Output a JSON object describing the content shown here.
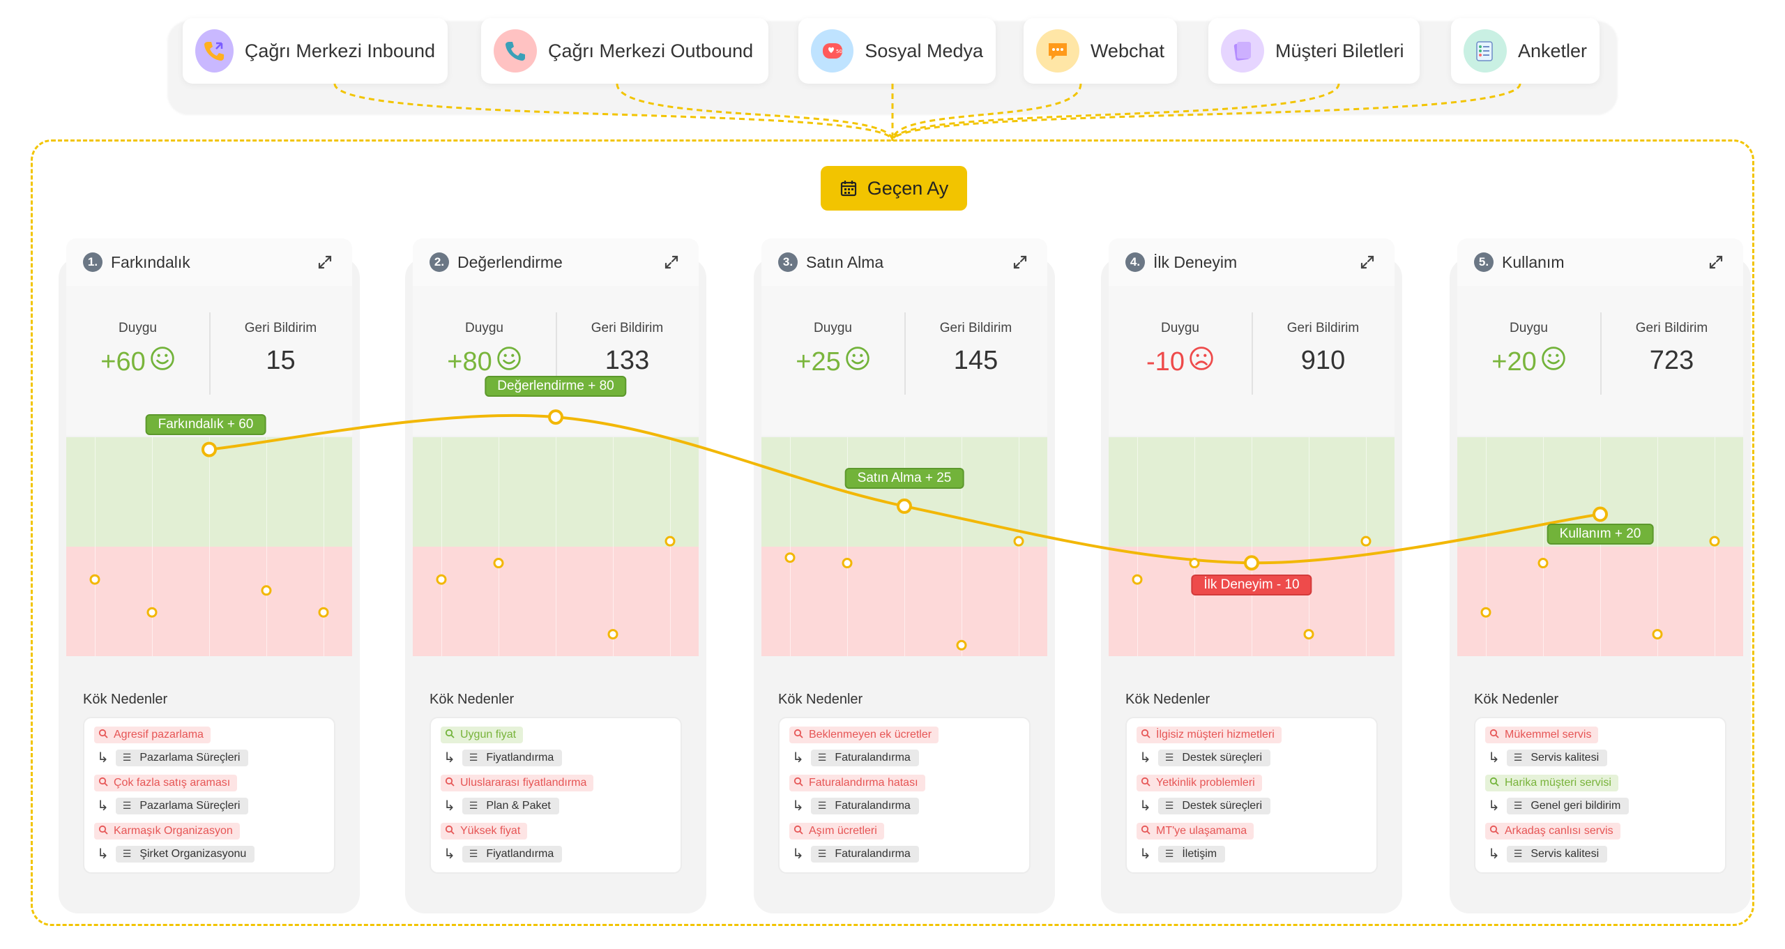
{
  "sources": [
    {
      "label": "Çağrı Merkezi Inbound",
      "icon": "phone-inbound-icon",
      "color": "#c9b8ff"
    },
    {
      "label": "Çağrı Merkezi Outbound",
      "icon": "phone-outbound-icon",
      "color": "#ffc2c2"
    },
    {
      "label": "Sosyal Medya",
      "icon": "social-media-icon",
      "color": "#bfe3ff"
    },
    {
      "label": "Webchat",
      "icon": "webchat-icon",
      "color": "#ffe6a6"
    },
    {
      "label": "Müşteri Biletleri",
      "icon": "ticket-icon",
      "color": "#e6d5ff"
    },
    {
      "label": "Anketler",
      "icon": "survey-icon",
      "color": "#c9f0e3"
    }
  ],
  "period": {
    "label": "Geçen Ay",
    "icon": "calendar-icon"
  },
  "metric_labels": {
    "sentiment": "Duygu",
    "feedback": "Geri Bildirim"
  },
  "root_causes_title": "Kök Nedenler",
  "colors": {
    "accent": "#f2c400",
    "positive": "#72b33a",
    "negative": "#ee4b4b"
  },
  "stages": [
    {
      "number": "1.",
      "title": "Farkındalık",
      "sentiment": "+60",
      "sentiment_value": 60,
      "mood": "happy",
      "feedback": "15",
      "chart_label": "Farkındalık + 60",
      "points": [
        [
          0.1,
          -0.3
        ],
        [
          0.3,
          -0.6
        ],
        [
          0.7,
          -0.4
        ],
        [
          0.9,
          -0.6
        ]
      ],
      "causes": [
        {
          "text": "Agresif pazarlama",
          "type": "neg",
          "category": "Pazarlama Süreçleri"
        },
        {
          "text": "Çok fazla satış araması",
          "type": "neg",
          "category": "Pazarlama Süreçleri"
        },
        {
          "text": "Karmaşık Organizasyon",
          "type": "neg",
          "category": "Şirket Organizasyonu"
        }
      ]
    },
    {
      "number": "2.",
      "title": "Değerlendirme",
      "sentiment": "+80",
      "sentiment_value": 80,
      "mood": "happy",
      "feedback": "133",
      "chart_label": "Değerlendirme + 80",
      "points": [
        [
          0.1,
          -0.3
        ],
        [
          0.3,
          -0.15
        ],
        [
          0.7,
          -0.8
        ],
        [
          0.9,
          0.05
        ]
      ],
      "causes": [
        {
          "text": "Uygun fiyat",
          "type": "pos",
          "category": "Fiyatlandırma"
        },
        {
          "text": "Uluslararası fiyatlandırma",
          "type": "neg",
          "category": "Plan & Paket"
        },
        {
          "text": "Yüksek fiyat",
          "type": "neg",
          "category": "Fiyatlandırma"
        }
      ]
    },
    {
      "number": "3.",
      "title": "Satın Alma",
      "sentiment": "+25",
      "sentiment_value": 25,
      "mood": "happy",
      "feedback": "145",
      "chart_label": "Satın Alma + 25",
      "points": [
        [
          0.1,
          -0.1
        ],
        [
          0.3,
          -0.15
        ],
        [
          0.7,
          -0.9
        ],
        [
          0.9,
          0.05
        ]
      ],
      "causes": [
        {
          "text": "Beklenmeyen ek ücretler",
          "type": "neg",
          "category": "Faturalandırma"
        },
        {
          "text": "Faturalandırma hatası",
          "type": "neg",
          "category": "Faturalandırma"
        },
        {
          "text": "Aşım ücretleri",
          "type": "neg",
          "category": "Faturalandırma"
        }
      ]
    },
    {
      "number": "4.",
      "title": "İlk Deneyim",
      "sentiment": "-10",
      "sentiment_value": -10,
      "mood": "sad",
      "feedback": "910",
      "chart_label": "İlk Deneyim - 10",
      "points": [
        [
          0.1,
          -0.3
        ],
        [
          0.3,
          -0.15
        ],
        [
          0.7,
          -0.8
        ],
        [
          0.9,
          0.05
        ]
      ],
      "causes": [
        {
          "text": "İlgisiz müşteri hizmetleri",
          "type": "neg",
          "category": "Destek süreçleri"
        },
        {
          "text": "Yetkinlik problemleri",
          "type": "neg",
          "category": "Destek süreçleri"
        },
        {
          "text": "MT'ye ulaşamama",
          "type": "neg",
          "category": "İletişim"
        }
      ]
    },
    {
      "number": "5.",
      "title": "Kullanım",
      "sentiment": "+20",
      "sentiment_value": 20,
      "mood": "happy",
      "feedback": "723",
      "chart_label": "Kullanım + 20",
      "points": [
        [
          0.1,
          -0.6
        ],
        [
          0.3,
          -0.15
        ],
        [
          0.7,
          -0.8
        ],
        [
          0.9,
          0.05
        ]
      ],
      "causes": [
        {
          "text": "Mükemmel servis",
          "type": "neg",
          "category": "Servis kalitesi"
        },
        {
          "text": "Harika müşteri servisi",
          "type": "pos",
          "category": "Genel geri bildirim"
        },
        {
          "text": "Arkadaş canlısı servis",
          "type": "neg",
          "category": "Servis kalitesi"
        }
      ]
    }
  ]
}
